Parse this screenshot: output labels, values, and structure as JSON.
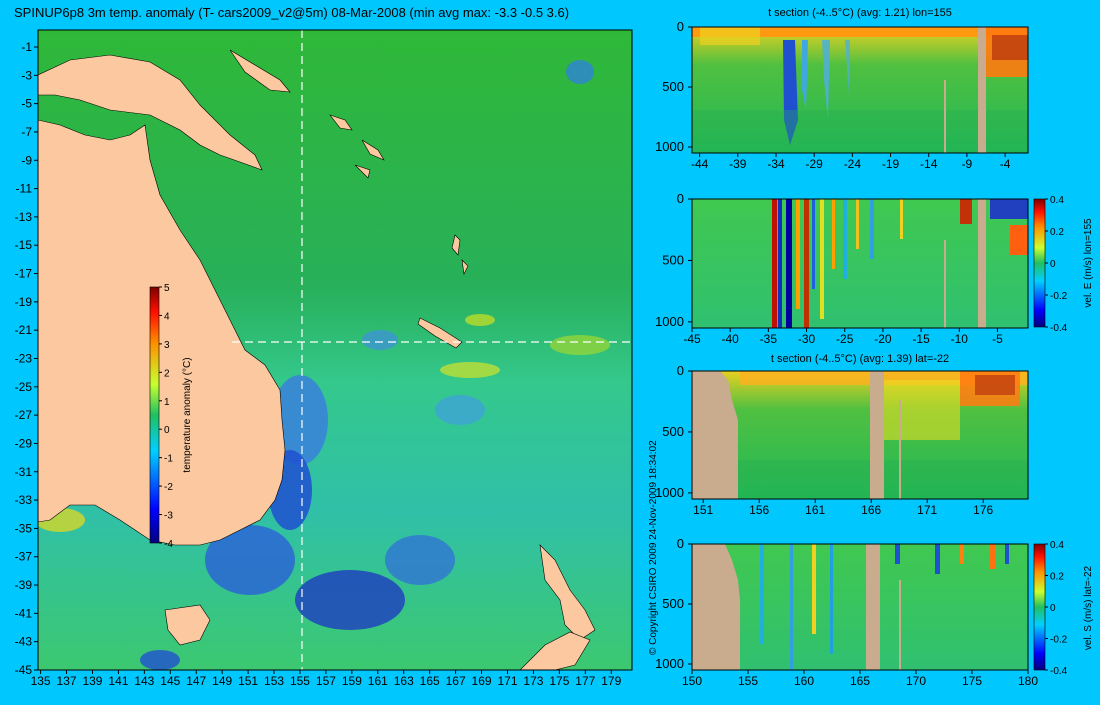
{
  "colors": {
    "background": "#00c8ff",
    "land": "#fbc89f",
    "section_land": "#c9ab8e"
  },
  "chart_data": [
    {
      "type": "heatmap",
      "title": "SPINUP6p8 3m temp. anomaly (T- cars2009_v2@5m) 08-Mar-2008 (min avg max: -3.3 -0.5 3.6)",
      "xticks": [
        "135",
        "137",
        "139",
        "141",
        "143",
        "145",
        "147",
        "149",
        "151",
        "153",
        "155",
        "157",
        "159",
        "161",
        "163",
        "165",
        "167",
        "169",
        "171",
        "173",
        "175",
        "177",
        "179"
      ],
      "yticks": [
        "-1",
        "-3",
        "-5",
        "-7",
        "-9",
        "-11",
        "-13",
        "-15",
        "-17",
        "-19",
        "-21",
        "-23",
        "-25",
        "-27",
        "-29",
        "-31",
        "-33",
        "-35",
        "-37",
        "-39",
        "-41",
        "-43",
        "-45"
      ],
      "xlim": [
        134.8,
        180.6
      ],
      "ylim": [
        -45,
        0.2
      ],
      "crosshair": {
        "lon": 155,
        "lat": -22
      },
      "colorbar": {
        "label": "temperature anomaly (°C)",
        "ticks": [
          "5",
          "4",
          "3",
          "2",
          "1",
          "0",
          "-1",
          "-2",
          "-3",
          "-4"
        ],
        "range": [
          -4,
          5
        ]
      }
    },
    {
      "type": "heatmap",
      "title": "t section (-4..5°C) (avg: 1.21) lon=155",
      "xticks": [
        "-44",
        "-39",
        "-34",
        "-29",
        "-24",
        "-19",
        "-14",
        "-9",
        "-4"
      ],
      "yticks": [
        "0",
        "500",
        "1000"
      ],
      "xlim": [
        -45,
        -1
      ],
      "ylim": [
        1050,
        0
      ]
    },
    {
      "type": "heatmap",
      "title": "",
      "xticks": [
        "-45",
        "-40",
        "-35",
        "-30",
        "-25",
        "-20",
        "-15",
        "-10",
        "-5"
      ],
      "yticks": [
        "0",
        "500",
        "1000"
      ],
      "xlim": [
        -45,
        -1
      ],
      "ylim": [
        1050,
        0
      ],
      "colorbar": {
        "label": "vel. E (m/s) lon=155",
        "ticks": [
          "0.4",
          "0.2",
          "0",
          "-0.2",
          "-0.4"
        ],
        "range": [
          -0.4,
          0.4
        ]
      }
    },
    {
      "type": "heatmap",
      "title": "t section (-4..5°C) (avg: 1.39) lat=-22",
      "xticks": [
        "151",
        "156",
        "161",
        "166",
        "171",
        "176"
      ],
      "yticks": [
        "0",
        "500",
        "1000"
      ],
      "xlim": [
        150,
        180
      ],
      "ylim": [
        1050,
        0
      ]
    },
    {
      "type": "heatmap",
      "title": "",
      "xticks": [
        "150",
        "155",
        "160",
        "165",
        "170",
        "175",
        "180"
      ],
      "yticks": [
        "0",
        "500",
        "1000"
      ],
      "xlim": [
        150,
        180
      ],
      "ylim": [
        1050,
        0
      ],
      "colorbar": {
        "label": "vel. S (m/s) lat=-22",
        "ticks": [
          "0.4",
          "0.2",
          "0",
          "-0.2",
          "-0.4"
        ],
        "range": [
          -0.4,
          0.4
        ]
      }
    }
  ],
  "footer": {
    "copyright": "© Copyright CSIRO 2009   24-Nov-2009 18:34:02"
  }
}
